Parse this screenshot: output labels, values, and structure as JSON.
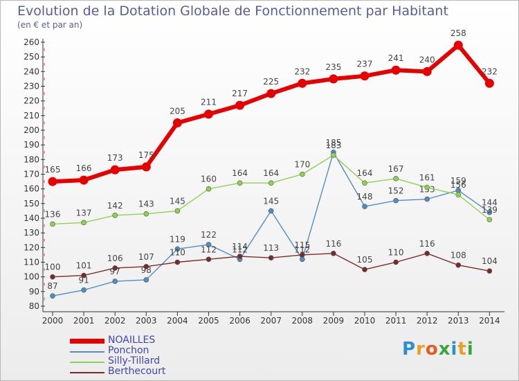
{
  "title": "Evolution de la Dotation Globale de Fonctionnement par Habitant",
  "subtitle": "(en € et par an)",
  "brand": {
    "letters": [
      "P",
      "r",
      "o",
      "x",
      "i",
      "t",
      "i"
    ],
    "colors": [
      "#2d8fd0",
      "#e8a020",
      "#e85a20",
      "#3aa63a",
      "#2d8fd0",
      "#e8a020",
      "#3aa63a"
    ]
  },
  "chart_data": {
    "type": "line",
    "title": "Evolution de la Dotation Globale de Fonctionnement par Habitant",
    "subtitle": "(en € et par an)",
    "xlabel": "",
    "ylabel": "",
    "ylim": [
      80,
      260
    ],
    "ytick_step": 10,
    "grid": false,
    "legend_position": "bottom-left",
    "categories": [
      "2000",
      "2001",
      "2002",
      "2003",
      "2004",
      "2005",
      "2006",
      "2007",
      "2008",
      "2009",
      "2010",
      "2011",
      "2012",
      "2013",
      "2014"
    ],
    "series": [
      {
        "name": "NOAILLES",
        "color": "#e60000",
        "values": [
          165,
          166,
          173,
          175,
          205,
          211,
          217,
          225,
          232,
          235,
          237,
          241,
          240,
          258,
          232
        ]
      },
      {
        "name": "Ponchon",
        "color": "#4f8ec4",
        "values": [
          87,
          91,
          97,
          98,
          119,
          122,
          112,
          145,
          112,
          185,
          148,
          152,
          153,
          159,
          144
        ]
      },
      {
        "name": "Silly-Tillard",
        "color": "#8ed14f",
        "values": [
          136,
          137,
          142,
          143,
          145,
          160,
          164,
          164,
          170,
          183,
          164,
          167,
          161,
          156,
          139
        ]
      },
      {
        "name": "Berthecourt",
        "color": "#7a2a2a",
        "values": [
          100,
          101,
          106,
          107,
          110,
          112,
          114,
          113,
          115,
          116,
          105,
          110,
          116,
          108,
          104
        ]
      }
    ]
  }
}
